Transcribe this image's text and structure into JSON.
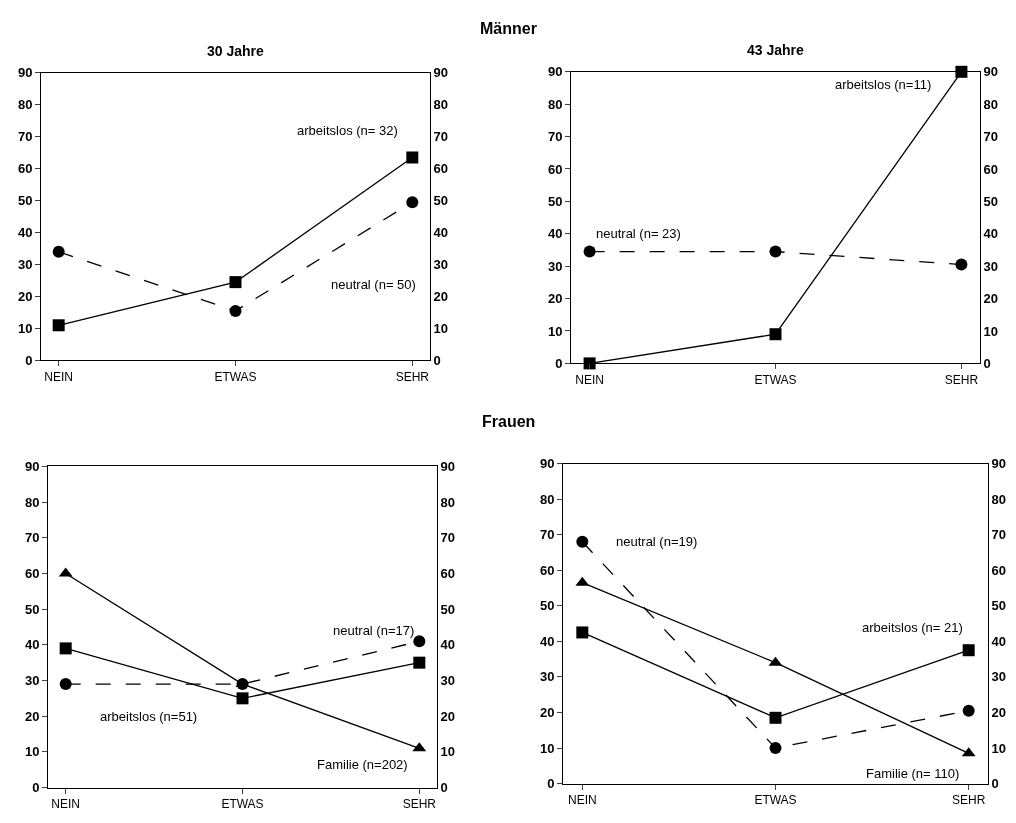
{
  "chart_data": [
    {
      "type": "line",
      "title": "30 Jahre",
      "categories": [
        "NEIN",
        "ETWAS",
        "SEHR"
      ],
      "ylim": [
        0,
        90
      ],
      "yticks": [
        0,
        10,
        20,
        30,
        40,
        50,
        60,
        70,
        80,
        90
      ],
      "y2lim": [
        0,
        90
      ],
      "y2ticks": [
        0,
        10,
        20,
        30,
        40,
        50,
        60,
        70,
        80,
        90
      ],
      "grid": false,
      "legend": false,
      "series": [
        {
          "name": "arbeitslos (n= 32)",
          "color": "#000000",
          "marker": "square",
          "line_style": "solid",
          "values": [
            11,
            24.5,
            63.5
          ]
        },
        {
          "name": "neutral (n= 50)",
          "color": "#000000",
          "marker": "circle",
          "line_style": "dashed",
          "values": [
            34,
            15.5,
            49.5
          ]
        }
      ],
      "annotations": [
        "Männer"
      ]
    },
    {
      "type": "line",
      "title": "43 Jahre",
      "categories": [
        "NEIN",
        "ETWAS",
        "SEHR"
      ],
      "ylim": [
        0,
        90
      ],
      "yticks": [
        0,
        10,
        20,
        30,
        40,
        50,
        60,
        70,
        80,
        90
      ],
      "y2lim": [
        0,
        90
      ],
      "y2ticks": [
        0,
        10,
        20,
        30,
        40,
        50,
        60,
        70,
        80,
        90
      ],
      "grid": false,
      "legend": false,
      "series": [
        {
          "name": "arbeitslos (n=11)",
          "color": "#000000",
          "marker": "square",
          "line_style": "solid",
          "values": [
            0,
            9,
            90
          ]
        },
        {
          "name": "neutral (n= 23)",
          "color": "#000000",
          "marker": "circle",
          "line_style": "dashed",
          "values": [
            34.5,
            34.5,
            30.5
          ]
        }
      ]
    },
    {
      "type": "line",
      "categories": [
        "NEIN",
        "ETWAS",
        "SEHR"
      ],
      "ylim": [
        0,
        90
      ],
      "yticks": [
        0,
        10,
        20,
        30,
        40,
        50,
        60,
        70,
        80,
        90
      ],
      "y2lim": [
        0,
        90
      ],
      "y2ticks": [
        0,
        10,
        20,
        30,
        40,
        50,
        60,
        70,
        80,
        90
      ],
      "grid": false,
      "legend": false,
      "series": [
        {
          "name": "Familie (n=202)",
          "color": "#000000",
          "marker": "triangle",
          "line_style": "solid",
          "values": [
            60,
            29,
            11
          ]
        },
        {
          "name": "arbeitslos (n=51)",
          "color": "#000000",
          "marker": "square",
          "line_style": "solid",
          "values": [
            39,
            25,
            35
          ]
        },
        {
          "name": "neutral (n=17)",
          "color": "#000000",
          "marker": "circle",
          "line_style": "dashed",
          "values": [
            29,
            29,
            41
          ]
        }
      ],
      "annotations": [
        "Frauen"
      ]
    },
    {
      "type": "line",
      "categories": [
        "NEIN",
        "ETWAS",
        "SEHR"
      ],
      "ylim": [
        0,
        90
      ],
      "yticks": [
        0,
        10,
        20,
        30,
        40,
        50,
        60,
        70,
        80,
        90
      ],
      "y2lim": [
        0,
        90
      ],
      "y2ticks": [
        0,
        10,
        20,
        30,
        40,
        50,
        60,
        70,
        80,
        90
      ],
      "grid": false,
      "legend": false,
      "series": [
        {
          "name": "neutral (n=19)",
          "color": "#000000",
          "marker": "circle",
          "line_style": "dashed",
          "values": [
            68,
            10,
            20.5
          ]
        },
        {
          "name": "Familie (n= 110)",
          "color": "#000000",
          "marker": "triangle",
          "line_style": "solid",
          "values": [
            56.5,
            34,
            8.5
          ]
        },
        {
          "name": "arbeitslos (n= 21)",
          "color": "#000000",
          "marker": "square",
          "line_style": "solid",
          "values": [
            42.5,
            18.5,
            37.5
          ]
        }
      ]
    }
  ]
}
